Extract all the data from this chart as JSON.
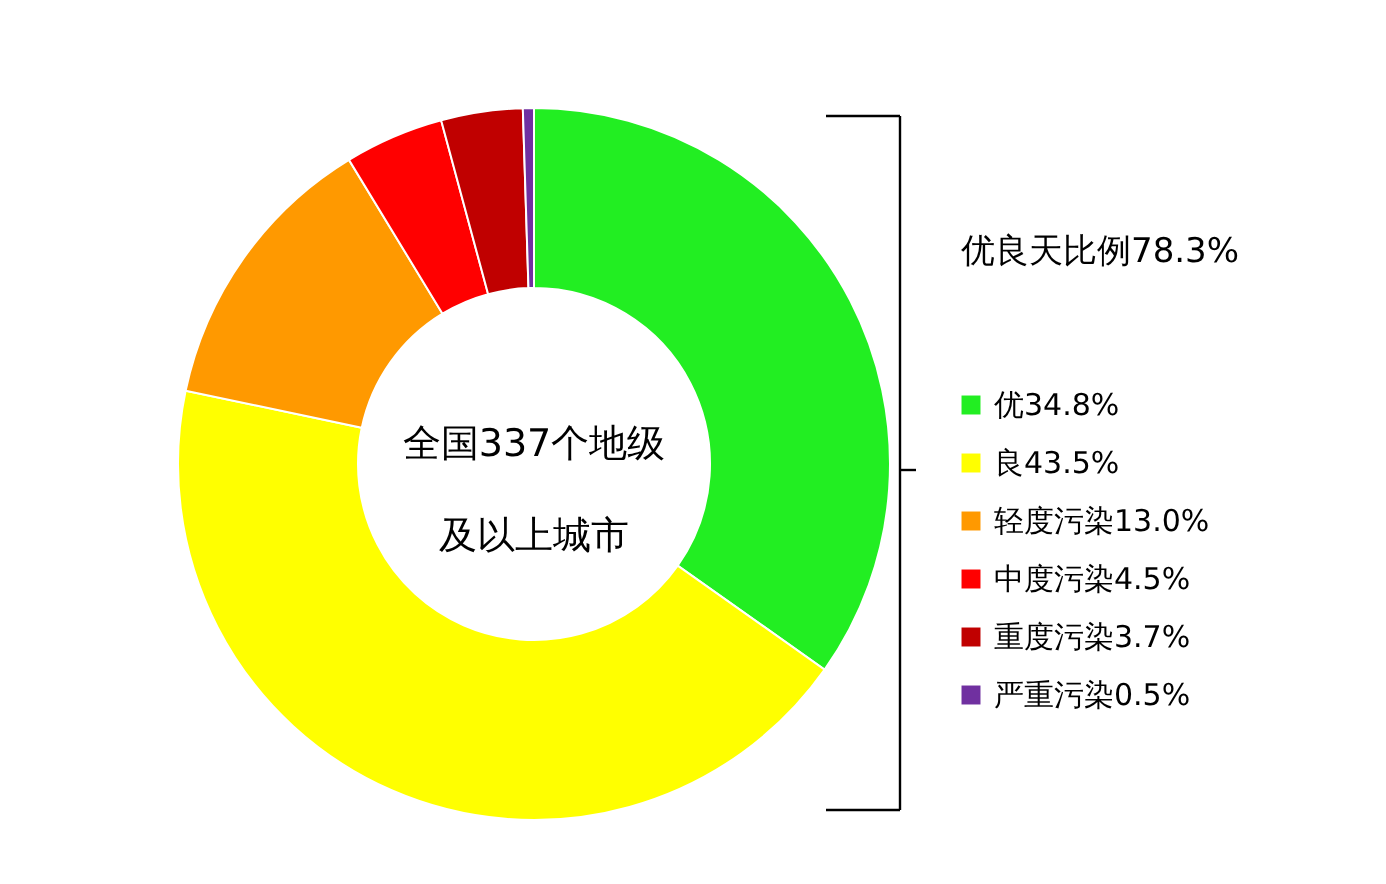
{
  "chart_data": {
    "type": "donut",
    "categories": [
      "优34.8%",
      "良43.5%",
      "轻度污染13.0%",
      "中度污染4.5%",
      "重度污染3.7%",
      "严重污染0.5%"
    ],
    "values": [
      34.8,
      43.5,
      13.0,
      4.5,
      3.7,
      0.5
    ],
    "colors": [
      "#22ee22",
      "#ffff00",
      "#ff9900",
      "#ff0000",
      "#c00000",
      "#7030a0"
    ],
    "annotations": [
      "全国337个地级",
      "及以上城市",
      "优良天比例78.3%"
    ],
    "legend": "right"
  }
}
